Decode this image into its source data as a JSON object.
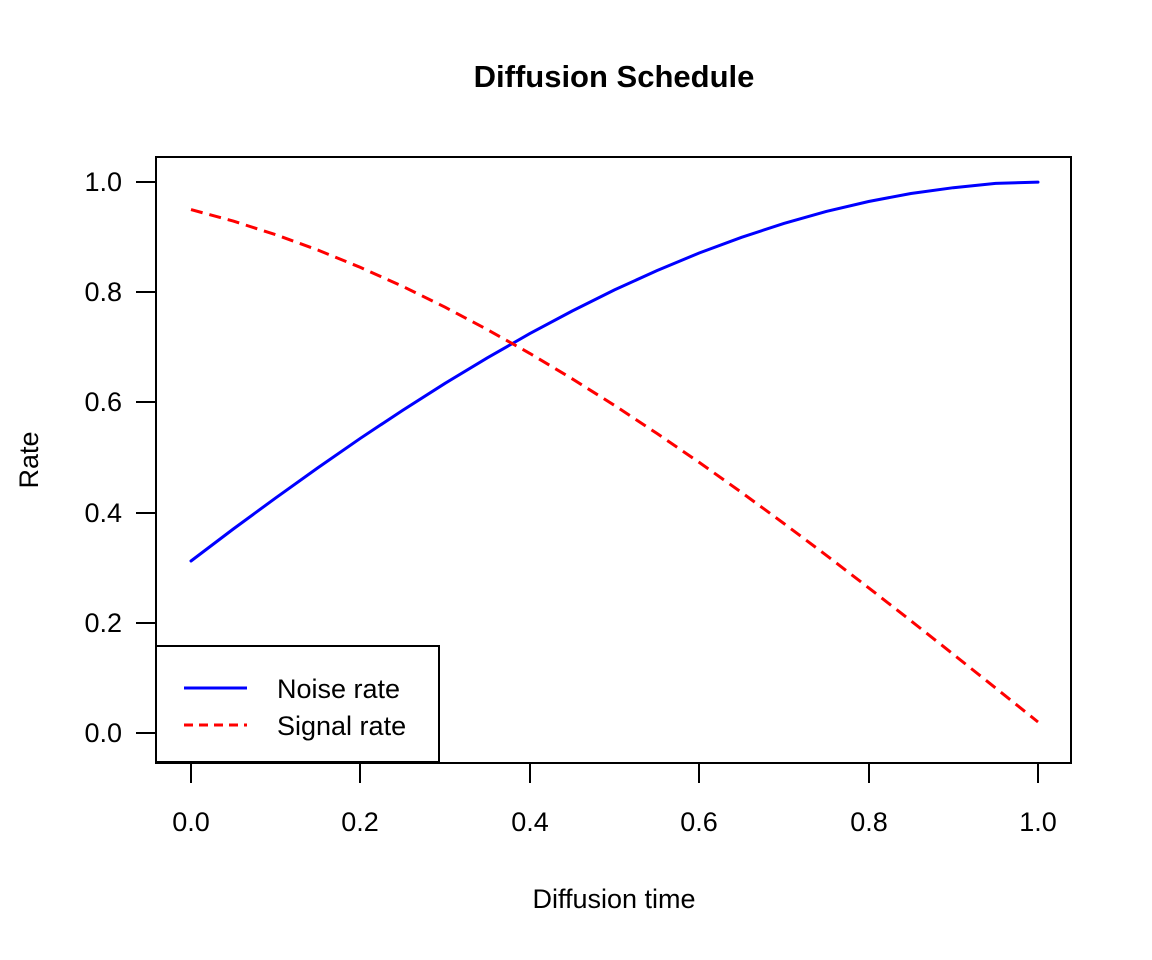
{
  "chart_data": {
    "type": "line",
    "title": "Diffusion Schedule",
    "xlabel": "Diffusion time",
    "ylabel": "Rate",
    "xlim": [
      0.0,
      1.0
    ],
    "ylim": [
      0.0,
      1.0
    ],
    "grid": false,
    "x_tick_labels": [
      "0.0",
      "0.2",
      "0.4",
      "0.6",
      "0.8",
      "1.0"
    ],
    "y_tick_labels": [
      "0.0",
      "0.2",
      "0.4",
      "0.6",
      "0.8",
      "1.0"
    ],
    "x": [
      0.0,
      0.05,
      0.1,
      0.15,
      0.2,
      0.25,
      0.3,
      0.35,
      0.4,
      0.45,
      0.5,
      0.55,
      0.6,
      0.65,
      0.7,
      0.75,
      0.8,
      0.85,
      0.9,
      0.95,
      1.0
    ],
    "series": [
      {
        "name": "Noise rate",
        "color": "#0000ff",
        "style": "solid",
        "values": [
          0.3122,
          0.3702,
          0.4267,
          0.4817,
          0.5348,
          0.5858,
          0.6346,
          0.681,
          0.7249,
          0.7659,
          0.8041,
          0.8392,
          0.8711,
          0.8997,
          0.9249,
          0.9466,
          0.9647,
          0.9791,
          0.9897,
          0.9974,
          0.9998
        ]
      },
      {
        "name": "Signal rate",
        "color": "#ff0000",
        "style": "dashed",
        "values": [
          0.95,
          0.929,
          0.9044,
          0.8764,
          0.845,
          0.8105,
          0.7728,
          0.7322,
          0.6889,
          0.6429,
          0.5945,
          0.5438,
          0.4911,
          0.4364,
          0.3802,
          0.3225,
          0.2635,
          0.2036,
          0.1428,
          0.0816,
          0.02
        ]
      }
    ],
    "legend": {
      "position": "bottom-left"
    }
  }
}
